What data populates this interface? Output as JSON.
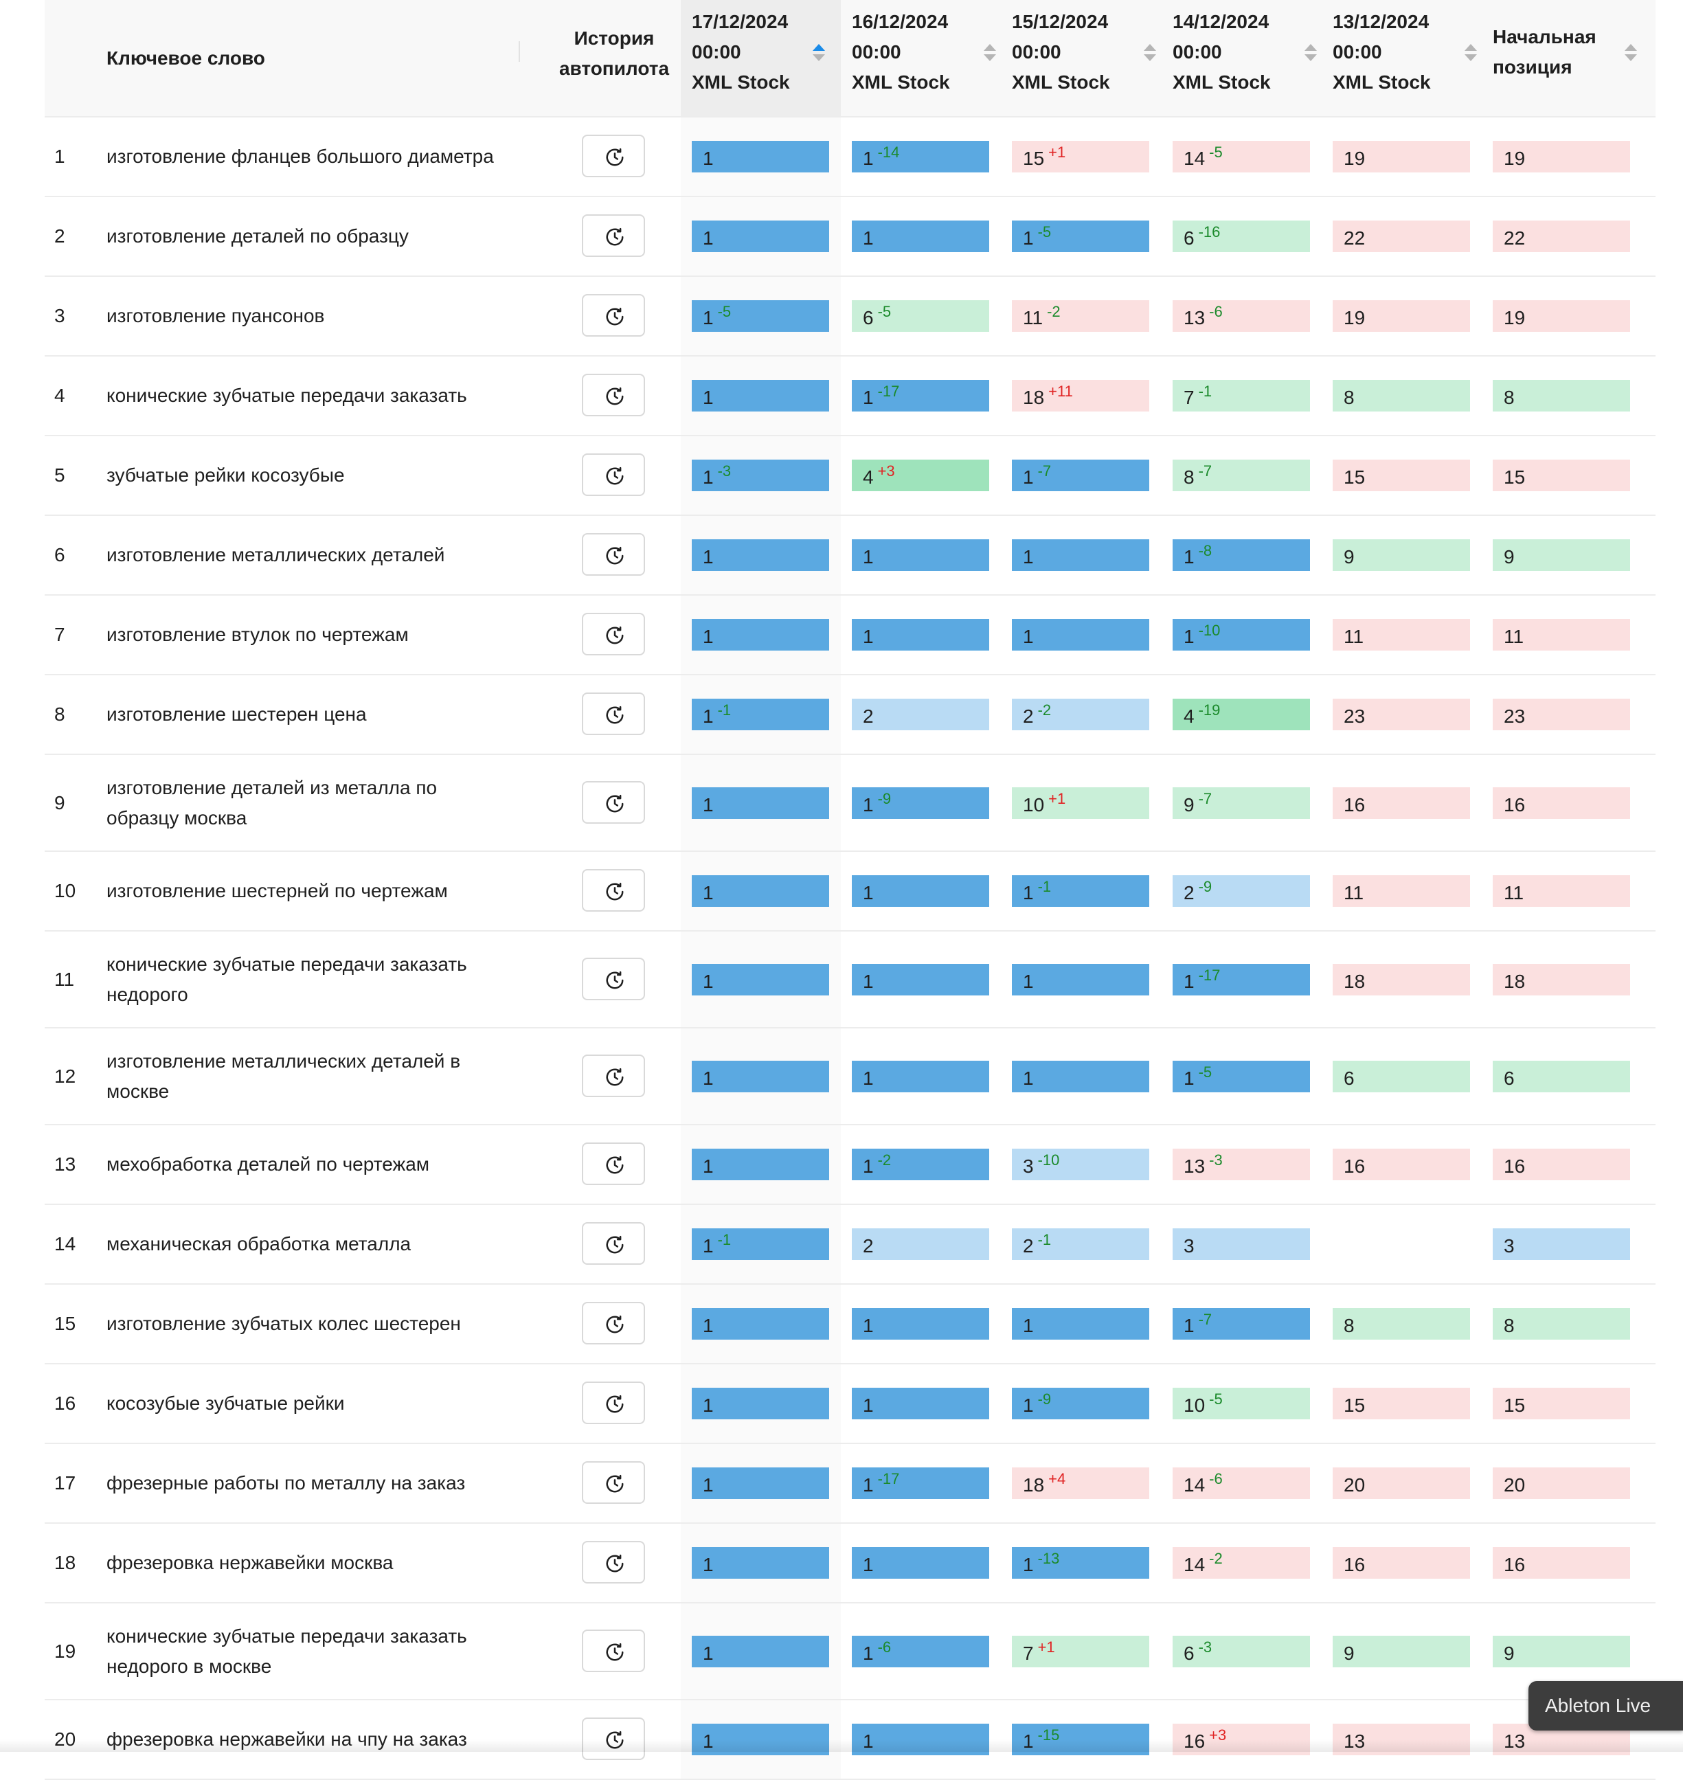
{
  "header": {
    "keyword_label": "Ключевое слово",
    "history_line1": "История",
    "history_line2": "автопилота",
    "dates": [
      {
        "date": "17/12/2024",
        "time": "00:00",
        "source": "XML Stock"
      },
      {
        "date": "16/12/2024",
        "time": "00:00",
        "source": "XML Stock"
      },
      {
        "date": "15/12/2024",
        "time": "00:00",
        "source": "XML Stock"
      },
      {
        "date": "14/12/2024",
        "time": "00:00",
        "source": "XML Stock"
      },
      {
        "date": "13/12/2024",
        "time": "00:00",
        "source": "XML Stock"
      }
    ],
    "start_line1": "Начальная",
    "start_line2": "позиция"
  },
  "colors": {
    "top1": "#5ba9e1",
    "top3": "#b9dbf4",
    "improved": "#c9efd8",
    "improved_big": "#9ee3bb",
    "declined": "#fbe0e0",
    "delta_good": "#1b8a2b",
    "delta_bad": "#e02424",
    "sort_active": "#1a8be8"
  },
  "icons": {
    "history": "history-clock-icon",
    "sort": "sort-arrows-icon"
  },
  "rows": [
    {
      "n": "1",
      "kw": [
        "изготовление фланцев большого диаметра"
      ],
      "cells": [
        {
          "v": "1",
          "d": "",
          "c": "top"
        },
        {
          "v": "1",
          "d": "-14",
          "c": "top"
        },
        {
          "v": "15",
          "d": "+1",
          "c": "down"
        },
        {
          "v": "14",
          "d": "-5",
          "c": "down"
        },
        {
          "v": "19",
          "d": "",
          "c": "down"
        },
        {
          "v": "19",
          "d": "",
          "c": "down"
        }
      ]
    },
    {
      "n": "2",
      "kw": [
        "изготовление деталей по образцу"
      ],
      "cells": [
        {
          "v": "1",
          "d": "",
          "c": "top"
        },
        {
          "v": "1",
          "d": "",
          "c": "top"
        },
        {
          "v": "1",
          "d": "-5",
          "c": "top"
        },
        {
          "v": "6",
          "d": "-16",
          "c": "up"
        },
        {
          "v": "22",
          "d": "",
          "c": "down"
        },
        {
          "v": "22",
          "d": "",
          "c": "down"
        }
      ]
    },
    {
      "n": "3",
      "kw": [
        "изготовление пуансонов"
      ],
      "cells": [
        {
          "v": "1",
          "d": "-5",
          "c": "top"
        },
        {
          "v": "6",
          "d": "-5",
          "c": "up"
        },
        {
          "v": "11",
          "d": "-2",
          "c": "down"
        },
        {
          "v": "13",
          "d": "-6",
          "c": "down"
        },
        {
          "v": "19",
          "d": "",
          "c": "down"
        },
        {
          "v": "19",
          "d": "",
          "c": "down"
        }
      ]
    },
    {
      "n": "4",
      "kw": [
        "конические зубчатые передачи заказать"
      ],
      "cells": [
        {
          "v": "1",
          "d": "",
          "c": "top"
        },
        {
          "v": "1",
          "d": "-17",
          "c": "top"
        },
        {
          "v": "18",
          "d": "+11",
          "c": "down"
        },
        {
          "v": "7",
          "d": "-1",
          "c": "up"
        },
        {
          "v": "8",
          "d": "",
          "c": "up"
        },
        {
          "v": "8",
          "d": "",
          "c": "up"
        }
      ]
    },
    {
      "n": "5",
      "kw": [
        "зубчатые рейки косозубые"
      ],
      "cells": [
        {
          "v": "1",
          "d": "-3",
          "c": "top"
        },
        {
          "v": "4",
          "d": "+3",
          "c": "upbig"
        },
        {
          "v": "1",
          "d": "-7",
          "c": "top"
        },
        {
          "v": "8",
          "d": "-7",
          "c": "up"
        },
        {
          "v": "15",
          "d": "",
          "c": "down"
        },
        {
          "v": "15",
          "d": "",
          "c": "down"
        }
      ]
    },
    {
      "n": "6",
      "kw": [
        "изготовление металлических деталей"
      ],
      "cells": [
        {
          "v": "1",
          "d": "",
          "c": "top"
        },
        {
          "v": "1",
          "d": "",
          "c": "top"
        },
        {
          "v": "1",
          "d": "",
          "c": "top"
        },
        {
          "v": "1",
          "d": "-8",
          "c": "top"
        },
        {
          "v": "9",
          "d": "",
          "c": "up"
        },
        {
          "v": "9",
          "d": "",
          "c": "up"
        }
      ]
    },
    {
      "n": "7",
      "kw": [
        "изготовление втулок по чертежам"
      ],
      "cells": [
        {
          "v": "1",
          "d": "",
          "c": "top"
        },
        {
          "v": "1",
          "d": "",
          "c": "top"
        },
        {
          "v": "1",
          "d": "",
          "c": "top"
        },
        {
          "v": "1",
          "d": "-10",
          "c": "top"
        },
        {
          "v": "11",
          "d": "",
          "c": "down"
        },
        {
          "v": "11",
          "d": "",
          "c": "down"
        }
      ]
    },
    {
      "n": "8",
      "kw": [
        "изготовление шестерен цена"
      ],
      "cells": [
        {
          "v": "1",
          "d": "-1",
          "c": "top"
        },
        {
          "v": "2",
          "d": "",
          "c": "top3"
        },
        {
          "v": "2",
          "d": "-2",
          "c": "top3"
        },
        {
          "v": "4",
          "d": "-19",
          "c": "upbig"
        },
        {
          "v": "23",
          "d": "",
          "c": "down"
        },
        {
          "v": "23",
          "d": "",
          "c": "down"
        }
      ]
    },
    {
      "n": "9",
      "kw": [
        "изготовление деталей из металла по",
        "образцу москва"
      ],
      "cells": [
        {
          "v": "1",
          "d": "",
          "c": "top"
        },
        {
          "v": "1",
          "d": "-9",
          "c": "top"
        },
        {
          "v": "10",
          "d": "+1",
          "c": "up"
        },
        {
          "v": "9",
          "d": "-7",
          "c": "up"
        },
        {
          "v": "16",
          "d": "",
          "c": "down"
        },
        {
          "v": "16",
          "d": "",
          "c": "down"
        }
      ]
    },
    {
      "n": "10",
      "kw": [
        "изготовление шестерней по чертежам"
      ],
      "cells": [
        {
          "v": "1",
          "d": "",
          "c": "top"
        },
        {
          "v": "1",
          "d": "",
          "c": "top"
        },
        {
          "v": "1",
          "d": "-1",
          "c": "top"
        },
        {
          "v": "2",
          "d": "-9",
          "c": "top3"
        },
        {
          "v": "11",
          "d": "",
          "c": "down"
        },
        {
          "v": "11",
          "d": "",
          "c": "down"
        }
      ]
    },
    {
      "n": "11",
      "kw": [
        "конические зубчатые передачи заказать",
        "недорого"
      ],
      "cells": [
        {
          "v": "1",
          "d": "",
          "c": "top"
        },
        {
          "v": "1",
          "d": "",
          "c": "top"
        },
        {
          "v": "1",
          "d": "",
          "c": "top"
        },
        {
          "v": "1",
          "d": "-17",
          "c": "top"
        },
        {
          "v": "18",
          "d": "",
          "c": "down"
        },
        {
          "v": "18",
          "d": "",
          "c": "down"
        }
      ]
    },
    {
      "n": "12",
      "kw": [
        "изготовление металлических деталей в",
        "москве"
      ],
      "cells": [
        {
          "v": "1",
          "d": "",
          "c": "top"
        },
        {
          "v": "1",
          "d": "",
          "c": "top"
        },
        {
          "v": "1",
          "d": "",
          "c": "top"
        },
        {
          "v": "1",
          "d": "-5",
          "c": "top"
        },
        {
          "v": "6",
          "d": "",
          "c": "up"
        },
        {
          "v": "6",
          "d": "",
          "c": "up"
        }
      ]
    },
    {
      "n": "13",
      "kw": [
        "мехобработка деталей по чертежам"
      ],
      "cells": [
        {
          "v": "1",
          "d": "",
          "c": "top"
        },
        {
          "v": "1",
          "d": "-2",
          "c": "top"
        },
        {
          "v": "3",
          "d": "-10",
          "c": "top3"
        },
        {
          "v": "13",
          "d": "-3",
          "c": "down"
        },
        {
          "v": "16",
          "d": "",
          "c": "down"
        },
        {
          "v": "16",
          "d": "",
          "c": "down"
        }
      ]
    },
    {
      "n": "14",
      "kw": [
        "механическая обработка металла"
      ],
      "cells": [
        {
          "v": "1",
          "d": "-1",
          "c": "top"
        },
        {
          "v": "2",
          "d": "",
          "c": "top3"
        },
        {
          "v": "2",
          "d": "-1",
          "c": "top3"
        },
        {
          "v": "3",
          "d": "",
          "c": "top3"
        },
        {
          "v": "",
          "d": "",
          "c": "none"
        },
        {
          "v": "3",
          "d": "",
          "c": "top3"
        }
      ]
    },
    {
      "n": "15",
      "kw": [
        "изготовление зубчатых колес шестерен"
      ],
      "cells": [
        {
          "v": "1",
          "d": "",
          "c": "top"
        },
        {
          "v": "1",
          "d": "",
          "c": "top"
        },
        {
          "v": "1",
          "d": "",
          "c": "top"
        },
        {
          "v": "1",
          "d": "-7",
          "c": "top"
        },
        {
          "v": "8",
          "d": "",
          "c": "up"
        },
        {
          "v": "8",
          "d": "",
          "c": "up"
        }
      ]
    },
    {
      "n": "16",
      "kw": [
        "косозубые зубчатые рейки"
      ],
      "cells": [
        {
          "v": "1",
          "d": "",
          "c": "top"
        },
        {
          "v": "1",
          "d": "",
          "c": "top"
        },
        {
          "v": "1",
          "d": "-9",
          "c": "top"
        },
        {
          "v": "10",
          "d": "-5",
          "c": "up"
        },
        {
          "v": "15",
          "d": "",
          "c": "down"
        },
        {
          "v": "15",
          "d": "",
          "c": "down"
        }
      ]
    },
    {
      "n": "17",
      "kw": [
        "фрезерные работы по металлу на заказ"
      ],
      "cells": [
        {
          "v": "1",
          "d": "",
          "c": "top"
        },
        {
          "v": "1",
          "d": "-17",
          "c": "top"
        },
        {
          "v": "18",
          "d": "+4",
          "c": "down"
        },
        {
          "v": "14",
          "d": "-6",
          "c": "down"
        },
        {
          "v": "20",
          "d": "",
          "c": "down"
        },
        {
          "v": "20",
          "d": "",
          "c": "down"
        }
      ]
    },
    {
      "n": "18",
      "kw": [
        "фрезеровка нержавейки москва"
      ],
      "cells": [
        {
          "v": "1",
          "d": "",
          "c": "top"
        },
        {
          "v": "1",
          "d": "",
          "c": "top"
        },
        {
          "v": "1",
          "d": "-13",
          "c": "top"
        },
        {
          "v": "14",
          "d": "-2",
          "c": "down"
        },
        {
          "v": "16",
          "d": "",
          "c": "down"
        },
        {
          "v": "16",
          "d": "",
          "c": "down"
        }
      ]
    },
    {
      "n": "19",
      "kw": [
        "конические зубчатые передачи заказать",
        "недорого в москве"
      ],
      "cells": [
        {
          "v": "1",
          "d": "",
          "c": "top"
        },
        {
          "v": "1",
          "d": "-6",
          "c": "top"
        },
        {
          "v": "7",
          "d": "+1",
          "c": "up"
        },
        {
          "v": "6",
          "d": "-3",
          "c": "up"
        },
        {
          "v": "9",
          "d": "",
          "c": "up"
        },
        {
          "v": "9",
          "d": "",
          "c": "up"
        }
      ]
    },
    {
      "n": "20",
      "kw": [
        "фрезеровка нержавейки на чпу на заказ"
      ],
      "cells": [
        {
          "v": "1",
          "d": "",
          "c": "top"
        },
        {
          "v": "1",
          "d": "",
          "c": "top"
        },
        {
          "v": "1",
          "d": "-15",
          "c": "top"
        },
        {
          "v": "16",
          "d": "+3",
          "c": "down"
        },
        {
          "v": "13",
          "d": "",
          "c": "down"
        },
        {
          "v": "13",
          "d": "",
          "c": "down"
        }
      ]
    }
  ],
  "tooltip": {
    "text": "Ableton Live"
  }
}
